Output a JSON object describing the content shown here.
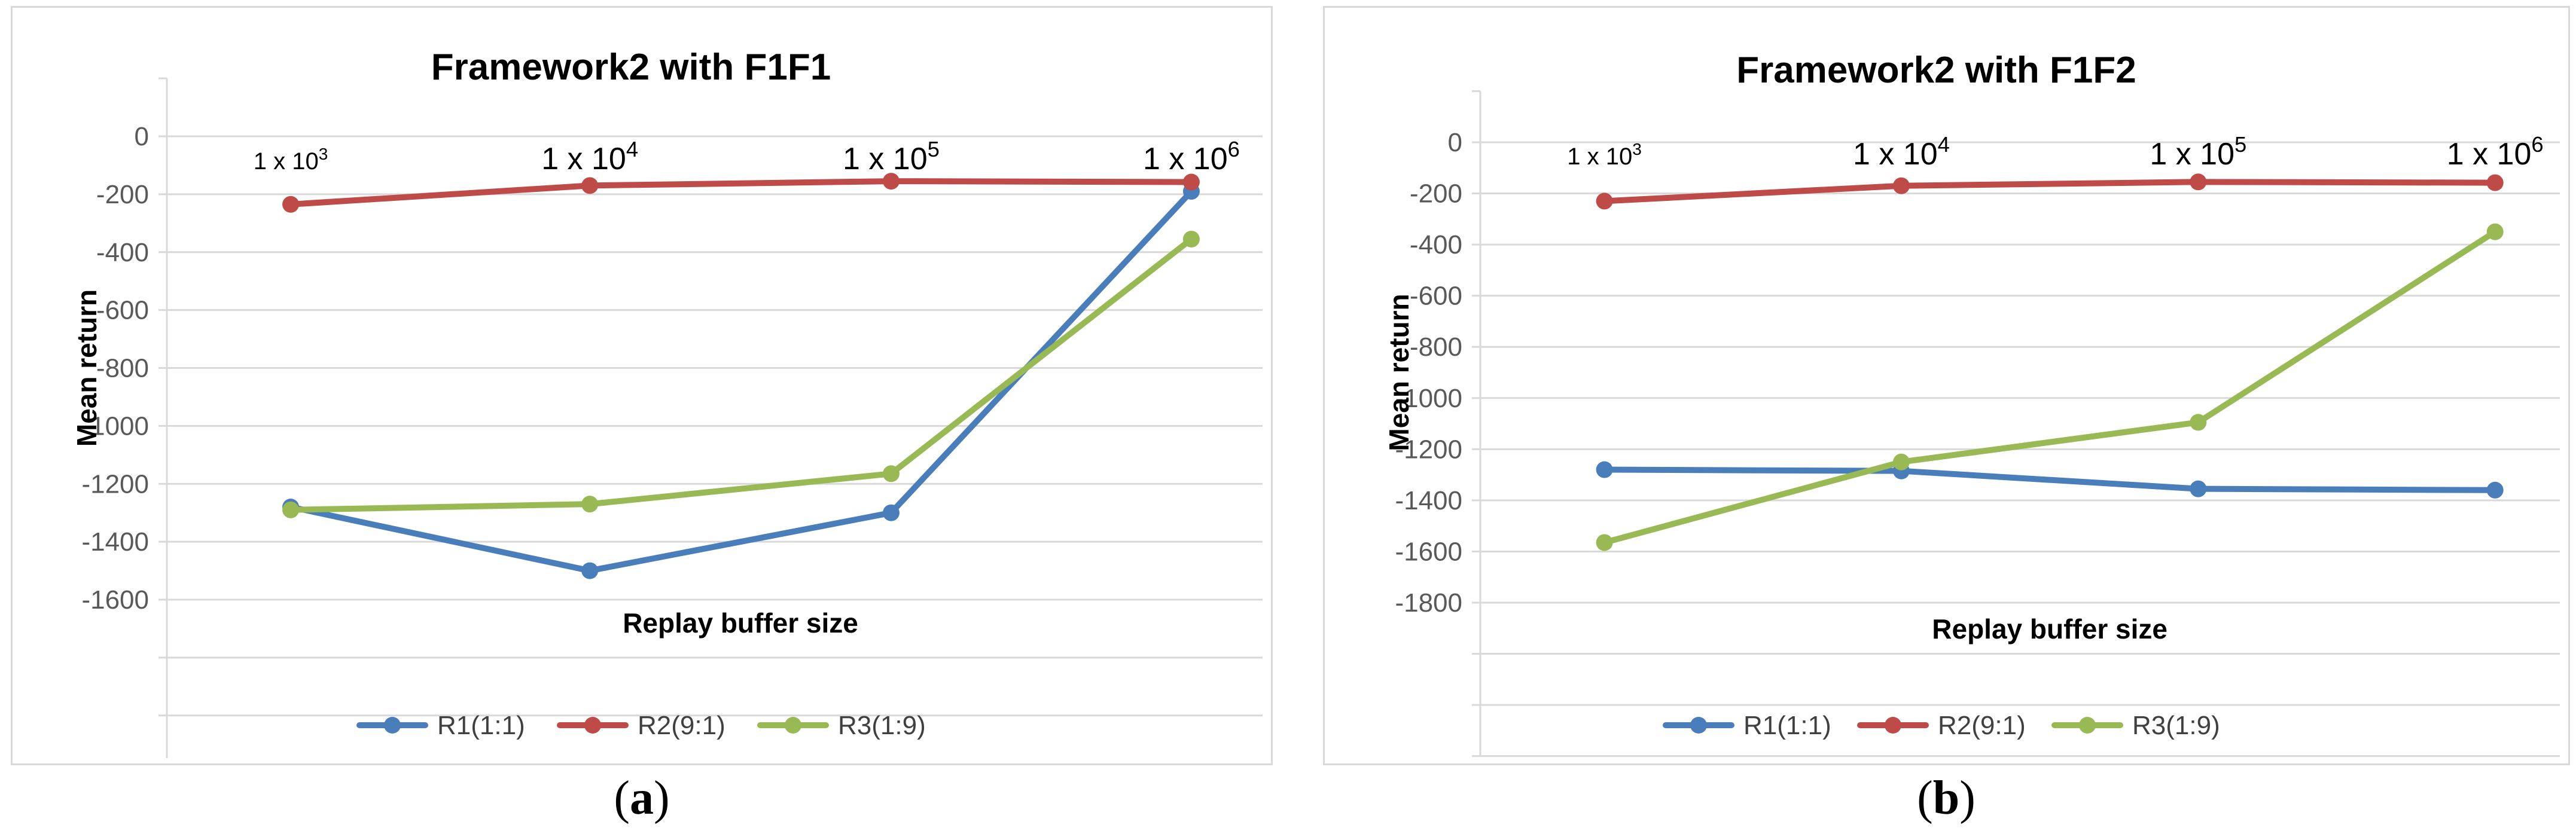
{
  "chart_data": [
    {
      "type": "line",
      "title": "Framework2 with F1F1",
      "xlabel": "Replay buffer size",
      "ylabel": "Mean return",
      "categories": [
        "1 x 10^3",
        "1 x 10^4",
        "1 x 10^5",
        "1 x 10^6"
      ],
      "category_labels": [
        {
          "base": "1 x 10",
          "exp": "3"
        },
        {
          "base": "1 x 10",
          "exp": "4"
        },
        {
          "base": "1 x 10",
          "exp": "5"
        },
        {
          "base": "1 x 10",
          "exp": "6"
        }
      ],
      "ylim": [
        -1600,
        0
      ],
      "yticks": [
        0,
        -200,
        -400,
        -600,
        -800,
        -1000,
        -1200,
        -1400,
        -1600
      ],
      "grid": true,
      "legend_position": "bottom",
      "series": [
        {
          "name": "R1(1:1)",
          "color": "#4a7ebb",
          "values": [
            -1280,
            -1500,
            -1300,
            -190
          ]
        },
        {
          "name": "R2(9:1)",
          "color": "#be4b48",
          "values": [
            -235,
            -170,
            -155,
            -158
          ]
        },
        {
          "name": "R3(1:9)",
          "color": "#98b954",
          "values": [
            -1290,
            -1270,
            -1165,
            -355
          ]
        }
      ]
    },
    {
      "type": "line",
      "title": "Framework2 with F1F2",
      "xlabel": "Replay buffer size",
      "ylabel": "Mean return",
      "categories": [
        "1 x 10^3",
        "1 x 10^4",
        "1 x 10^5",
        "1 x 10^6"
      ],
      "category_labels": [
        {
          "base": "1 x 10",
          "exp": "3"
        },
        {
          "base": "1 x 10",
          "exp": "4"
        },
        {
          "base": "1 x 10",
          "exp": "5"
        },
        {
          "base": "1 x 10",
          "exp": "6"
        }
      ],
      "ylim": [
        -1800,
        0
      ],
      "yticks": [
        0,
        -200,
        -400,
        -600,
        -800,
        -1000,
        -1200,
        -1400,
        -1600,
        -1800
      ],
      "grid": true,
      "legend_position": "bottom",
      "series": [
        {
          "name": "R1(1:1)",
          "color": "#4a7ebb",
          "values": [
            -1280,
            -1285,
            -1355,
            -1360
          ]
        },
        {
          "name": "R2(9:1)",
          "color": "#be4b48",
          "values": [
            -230,
            -170,
            -155,
            -158
          ]
        },
        {
          "name": "R3(1:9)",
          "color": "#98b954",
          "values": [
            -1565,
            -1250,
            -1095,
            -350
          ]
        }
      ]
    }
  ],
  "captions": [
    {
      "open": "(",
      "letter": "a",
      "close": ")"
    },
    {
      "open": "(",
      "letter": "b",
      "close": ")"
    }
  ]
}
